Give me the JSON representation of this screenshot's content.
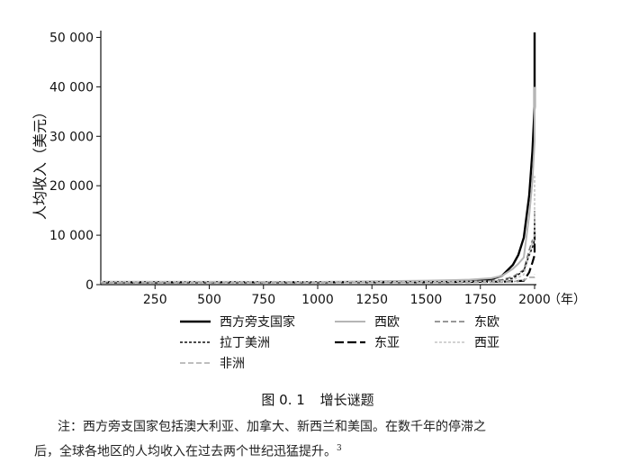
{
  "chart_data": {
    "type": "line",
    "ylabel": "人均收入（美元）",
    "xlabel": "（年）",
    "xlim": [
      0,
      2000
    ],
    "ylim": [
      0,
      51000
    ],
    "x_ticks": [
      250,
      500,
      750,
      1000,
      1250,
      1500,
      1750,
      2000
    ],
    "x_tick_labels": [
      "250",
      "500",
      "750",
      "1000",
      "1250",
      "1500",
      "1750",
      "2000"
    ],
    "y_ticks": [
      0,
      10000,
      20000,
      30000,
      40000,
      50000
    ],
    "y_tick_labels": [
      "0",
      "10 000",
      "20 000",
      "30 000",
      "40 000",
      "50 000"
    ],
    "legend_position": "bottom",
    "series": [
      {
        "name": "西方旁支国家",
        "color": "#000000",
        "dash": "solid",
        "width": 2.4,
        "x": [
          0,
          1000,
          1500,
          1600,
          1700,
          1800,
          1850,
          1900,
          1925,
          1950,
          1975,
          1990,
          2000,
          2010,
          2016
        ],
        "y": [
          500,
          500,
          500,
          550,
          700,
          1100,
          1800,
          4000,
          6000,
          9500,
          18000,
          27000,
          36000,
          44000,
          51000
        ]
      },
      {
        "name": "西欧",
        "color": "#b5b5b5",
        "dash": "solid",
        "width": 2.0,
        "x": [
          0,
          1000,
          1500,
          1600,
          1700,
          1800,
          1850,
          1900,
          1925,
          1950,
          1975,
          1990,
          2000,
          2010,
          2016
        ],
        "y": [
          600,
          550,
          800,
          900,
          1000,
          1300,
          1800,
          3200,
          4200,
          5500,
          14000,
          21000,
          29000,
          36000,
          40000
        ]
      },
      {
        "name": "东欧",
        "color": "#777777",
        "dash": "6 3",
        "width": 1.6,
        "x": [
          0,
          1000,
          1500,
          1700,
          1800,
          1850,
          1900,
          1950,
          1975,
          1990,
          2000,
          2010,
          2016
        ],
        "y": [
          450,
          450,
          500,
          650,
          800,
          1000,
          1600,
          3000,
          7000,
          9000,
          8500,
          13000,
          15000
        ]
      },
      {
        "name": "拉丁美洲",
        "color": "#111111",
        "dash": "3 2",
        "width": 1.6,
        "x": [
          0,
          1000,
          1500,
          1700,
          1800,
          1850,
          1900,
          1950,
          1975,
          1990,
          2000,
          2010,
          2016
        ],
        "y": [
          400,
          400,
          450,
          550,
          700,
          800,
          1300,
          2800,
          6000,
          7500,
          9000,
          11500,
          13000
        ]
      },
      {
        "name": "东亚",
        "color": "#000000",
        "dash": "10 4",
        "width": 2.2,
        "x": [
          0,
          1000,
          1500,
          1700,
          1800,
          1850,
          1900,
          1950,
          1975,
          1990,
          2000,
          2010,
          2016
        ],
        "y": [
          450,
          470,
          500,
          550,
          600,
          600,
          650,
          800,
          2500,
          4500,
          6000,
          9000,
          11000
        ]
      },
      {
        "name": "西亚",
        "color": "#c4c4c4",
        "dash": "3 2",
        "width": 1.6,
        "x": [
          0,
          1000,
          1500,
          1700,
          1800,
          1850,
          1900,
          1950,
          1975,
          1990,
          2000,
          2010,
          2016
        ],
        "y": [
          600,
          600,
          600,
          650,
          700,
          750,
          1000,
          2000,
          6000,
          8500,
          10000,
          14000,
          22000
        ]
      },
      {
        "name": "非洲",
        "color": "#a8a8a8",
        "dash": "6 3",
        "width": 1.6,
        "x": [
          0,
          1000,
          1500,
          1700,
          1800,
          1850,
          1900,
          1950,
          1975,
          1990,
          2000,
          2010,
          2016
        ],
        "y": [
          400,
          420,
          420,
          450,
          450,
          500,
          600,
          900,
          1500,
          1500,
          1500,
          1900,
          2100
        ]
      }
    ]
  },
  "caption": {
    "number": "图 0. 1",
    "title": "增长谜题"
  },
  "note": {
    "line1": "注：西方旁支国家包括澳大利亚、加拿大、新西兰和美国。在数千年的停滞之",
    "line2": "后，全球各地区的人均收入在过去两个世纪迅猛提升。",
    "footnote": "3"
  }
}
